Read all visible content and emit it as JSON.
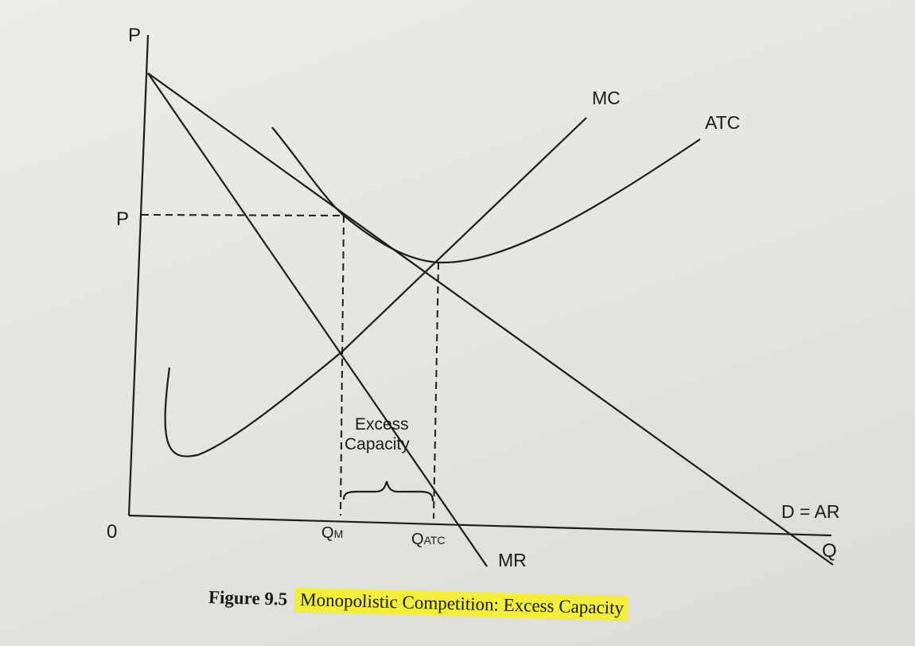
{
  "diagram": {
    "axes": {
      "y_label": "P",
      "x_label": "Q",
      "origin_label": "0"
    },
    "price_label": "P",
    "curves": {
      "mc": "MC",
      "atc": "ATC",
      "demand": "D = AR",
      "mr": "MR"
    },
    "quantities": {
      "q_m_main": "Q",
      "q_m_sub": "M",
      "q_atc_main": "Q",
      "q_atc_sub": "ATC"
    },
    "annotation": {
      "line1": "Excess",
      "line2": "Capacity"
    }
  },
  "caption": {
    "number": "Figure 9.5",
    "title": "Monopolistic Competition: Excess Capacity"
  },
  "colors": {
    "ink": "#1c1c1c",
    "highlight": "#f2ee3a"
  }
}
